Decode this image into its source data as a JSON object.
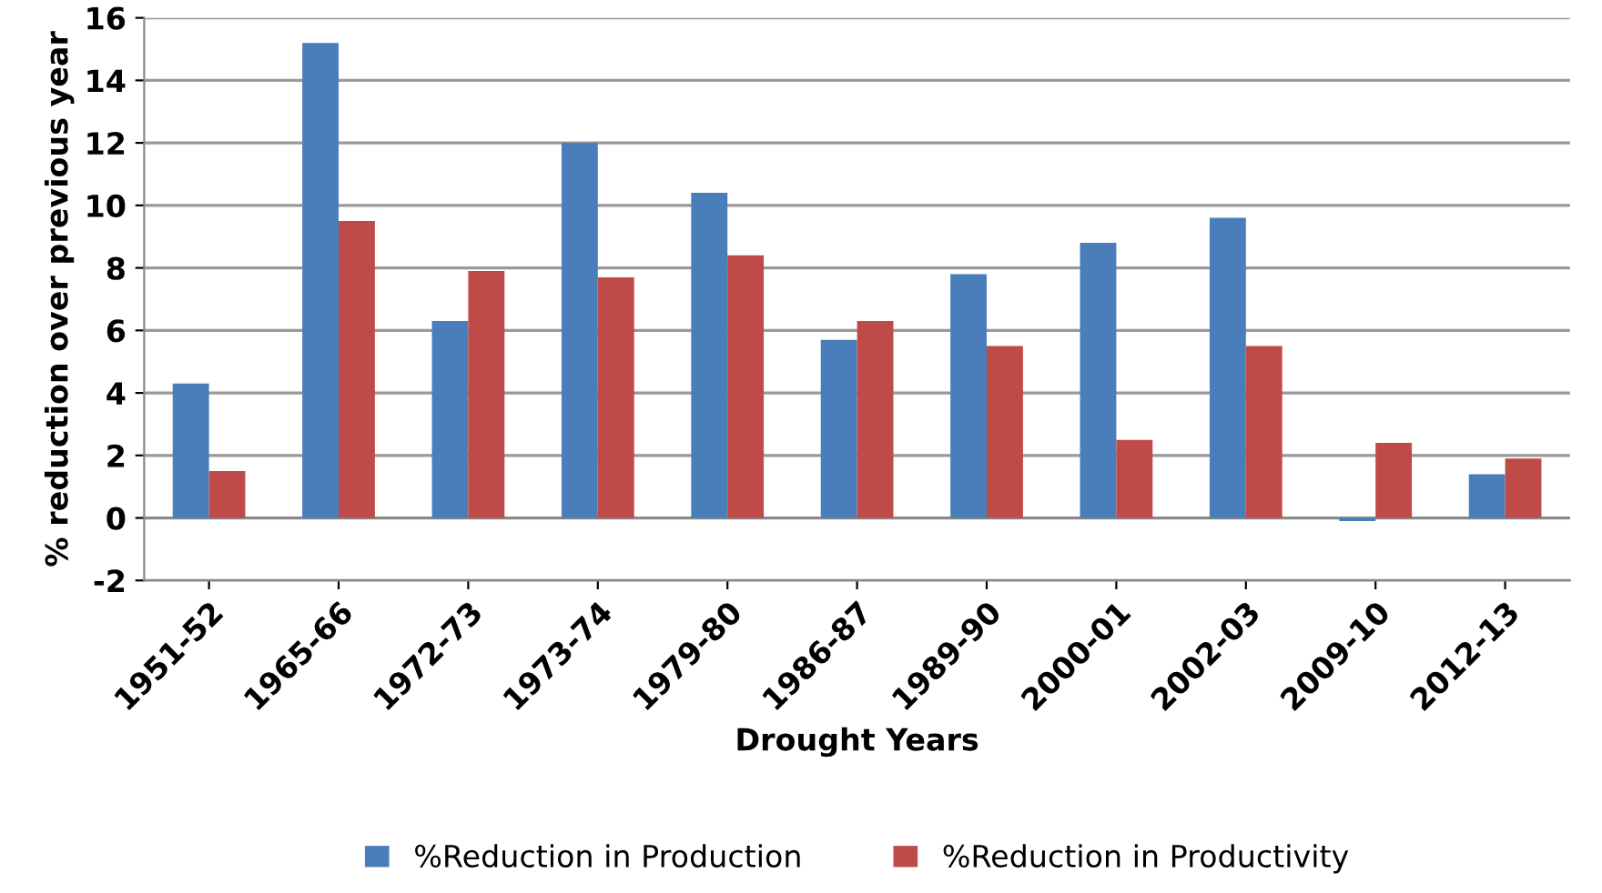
{
  "chart_data": {
    "type": "bar",
    "xlabel": "Drought Years",
    "ylabel": "% reduction over previous year",
    "categories": [
      "1951-52",
      "1965-66",
      "1972-73",
      "1973-74",
      "1979-80",
      "1986-87",
      "1989-90",
      "2000-01",
      "2002-03",
      "2009-10",
      "2012-13"
    ],
    "series": [
      {
        "name": "%Reduction in Production",
        "color": "#4a7ebb",
        "values": [
          4.3,
          15.2,
          6.3,
          12.0,
          10.4,
          5.7,
          7.8,
          8.8,
          9.6,
          -0.1,
          1.4
        ]
      },
      {
        "name": "%Reduction in Productivity",
        "color": "#be4b48",
        "values": [
          1.5,
          9.5,
          7.9,
          7.7,
          8.4,
          6.3,
          5.5,
          2.5,
          5.5,
          2.4,
          1.9
        ]
      }
    ],
    "ylim": [
      -2,
      16
    ],
    "yticks": [
      -2,
      0,
      2,
      4,
      6,
      8,
      10,
      12,
      14,
      16
    ],
    "grid": "y",
    "legend": "bottom"
  }
}
